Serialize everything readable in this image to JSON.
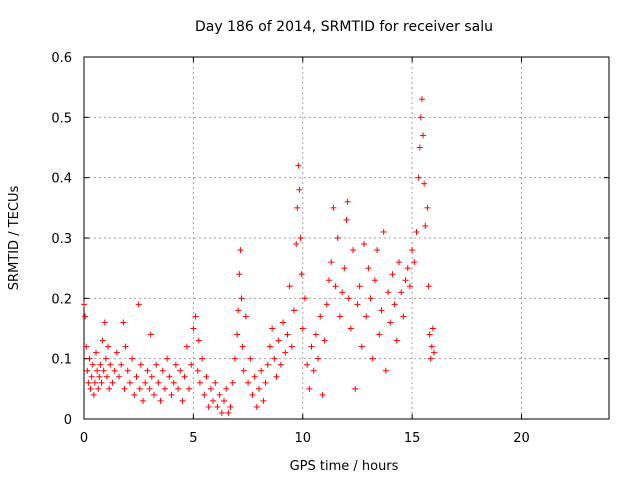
{
  "chart_data": {
    "type": "scatter",
    "title": "Day 186 of 2014, SRMTID for receiver salu",
    "xlabel": "GPS time / hours",
    "ylabel": "SRMTID / TECUs",
    "xlim": [
      0,
      24
    ],
    "ylim": [
      0,
      0.6
    ],
    "xticks": [
      0,
      5,
      10,
      15,
      20
    ],
    "xtick_labels": [
      "0",
      "5",
      "10",
      "15",
      "20"
    ],
    "yticks": [
      0,
      0.1,
      0.2,
      0.3,
      0.4,
      0.5,
      0.6
    ],
    "ytick_labels": [
      "0",
      "0.1",
      "0.2",
      "0.3",
      "0.4",
      "0.5",
      "0.6"
    ],
    "grid": true,
    "marker": "+",
    "marker_color": "#ff0000",
    "series": [
      {
        "name": "SRMTID",
        "points": [
          [
            0.0,
            0.19
          ],
          [
            0.05,
            0.17
          ],
          [
            0.1,
            0.12
          ],
          [
            0.15,
            0.08
          ],
          [
            0.2,
            0.06
          ],
          [
            0.25,
            0.1
          ],
          [
            0.3,
            0.05
          ],
          [
            0.35,
            0.07
          ],
          [
            0.4,
            0.09
          ],
          [
            0.45,
            0.04
          ],
          [
            0.5,
            0.06
          ],
          [
            0.55,
            0.11
          ],
          [
            0.6,
            0.08
          ],
          [
            0.65,
            0.05
          ],
          [
            0.7,
            0.07
          ],
          [
            0.75,
            0.09
          ],
          [
            0.8,
            0.06
          ],
          [
            0.85,
            0.13
          ],
          [
            0.9,
            0.08
          ],
          [
            0.95,
            0.16
          ],
          [
            1.0,
            0.1
          ],
          [
            1.05,
            0.07
          ],
          [
            1.1,
            0.12
          ],
          [
            1.15,
            0.05
          ],
          [
            1.2,
            0.09
          ],
          [
            1.3,
            0.06
          ],
          [
            1.4,
            0.08
          ],
          [
            1.5,
            0.11
          ],
          [
            1.6,
            0.07
          ],
          [
            1.7,
            0.09
          ],
          [
            1.8,
            0.16
          ],
          [
            1.85,
            0.05
          ],
          [
            1.9,
            0.12
          ],
          [
            2.0,
            0.08
          ],
          [
            2.1,
            0.06
          ],
          [
            2.2,
            0.1
          ],
          [
            2.3,
            0.04
          ],
          [
            2.4,
            0.07
          ],
          [
            2.5,
            0.19
          ],
          [
            2.55,
            0.05
          ],
          [
            2.6,
            0.09
          ],
          [
            2.7,
            0.03
          ],
          [
            2.8,
            0.06
          ],
          [
            2.9,
            0.08
          ],
          [
            3.0,
            0.05
          ],
          [
            3.05,
            0.14
          ],
          [
            3.1,
            0.07
          ],
          [
            3.2,
            0.04
          ],
          [
            3.3,
            0.09
          ],
          [
            3.4,
            0.06
          ],
          [
            3.5,
            0.03
          ],
          [
            3.6,
            0.08
          ],
          [
            3.7,
            0.05
          ],
          [
            3.8,
            0.1
          ],
          [
            3.9,
            0.07
          ],
          [
            4.0,
            0.04
          ],
          [
            4.1,
            0.06
          ],
          [
            4.2,
            0.09
          ],
          [
            4.3,
            0.05
          ],
          [
            4.4,
            0.08
          ],
          [
            4.5,
            0.03
          ],
          [
            4.6,
            0.07
          ],
          [
            4.7,
            0.12
          ],
          [
            4.8,
            0.05
          ],
          [
            4.9,
            0.09
          ],
          [
            5.0,
            0.15
          ],
          [
            5.1,
            0.17
          ],
          [
            5.2,
            0.08
          ],
          [
            5.25,
            0.13
          ],
          [
            5.3,
            0.06
          ],
          [
            5.4,
            0.1
          ],
          [
            5.5,
            0.04
          ],
          [
            5.6,
            0.07
          ],
          [
            5.7,
            0.02
          ],
          [
            5.8,
            0.05
          ],
          [
            5.9,
            0.03
          ],
          [
            6.0,
            0.06
          ],
          [
            6.1,
            0.02
          ],
          [
            6.2,
            0.04
          ],
          [
            6.3,
            0.01
          ],
          [
            6.4,
            0.03
          ],
          [
            6.5,
            0.05
          ],
          [
            6.6,
            0.01
          ],
          [
            6.7,
            0.02
          ],
          [
            6.8,
            0.06
          ],
          [
            6.9,
            0.1
          ],
          [
            7.0,
            0.14
          ],
          [
            7.05,
            0.18
          ],
          [
            7.1,
            0.24
          ],
          [
            7.15,
            0.28
          ],
          [
            7.2,
            0.2
          ],
          [
            7.25,
            0.12
          ],
          [
            7.3,
            0.08
          ],
          [
            7.4,
            0.17
          ],
          [
            7.5,
            0.06
          ],
          [
            7.6,
            0.1
          ],
          [
            7.7,
            0.04
          ],
          [
            7.8,
            0.07
          ],
          [
            7.9,
            0.02
          ],
          [
            8.0,
            0.05
          ],
          [
            8.1,
            0.08
          ],
          [
            8.2,
            0.03
          ],
          [
            8.3,
            0.06
          ],
          [
            8.4,
            0.09
          ],
          [
            8.5,
            0.12
          ],
          [
            8.6,
            0.15
          ],
          [
            8.7,
            0.1
          ],
          [
            8.8,
            0.07
          ],
          [
            8.9,
            0.13
          ],
          [
            9.0,
            0.09
          ],
          [
            9.1,
            0.16
          ],
          [
            9.2,
            0.11
          ],
          [
            9.3,
            0.14
          ],
          [
            9.4,
            0.22
          ],
          [
            9.5,
            0.12
          ],
          [
            9.6,
            0.18
          ],
          [
            9.7,
            0.29
          ],
          [
            9.75,
            0.35
          ],
          [
            9.8,
            0.42
          ],
          [
            9.85,
            0.38
          ],
          [
            9.9,
            0.3
          ],
          [
            9.95,
            0.24
          ],
          [
            10.0,
            0.15
          ],
          [
            10.1,
            0.2
          ],
          [
            10.2,
            0.09
          ],
          [
            10.3,
            0.05
          ],
          [
            10.4,
            0.12
          ],
          [
            10.5,
            0.08
          ],
          [
            10.6,
            0.14
          ],
          [
            10.7,
            0.1
          ],
          [
            10.8,
            0.17
          ],
          [
            10.9,
            0.04
          ],
          [
            11.0,
            0.13
          ],
          [
            11.1,
            0.19
          ],
          [
            11.2,
            0.23
          ],
          [
            11.3,
            0.26
          ],
          [
            11.4,
            0.35
          ],
          [
            11.5,
            0.22
          ],
          [
            11.6,
            0.3
          ],
          [
            11.7,
            0.17
          ],
          [
            11.8,
            0.21
          ],
          [
            11.9,
            0.25
          ],
          [
            12.0,
            0.33
          ],
          [
            12.05,
            0.36
          ],
          [
            12.1,
            0.2
          ],
          [
            12.2,
            0.15
          ],
          [
            12.3,
            0.28
          ],
          [
            12.4,
            0.05
          ],
          [
            12.5,
            0.19
          ],
          [
            12.6,
            0.22
          ],
          [
            12.7,
            0.12
          ],
          [
            12.8,
            0.29
          ],
          [
            12.9,
            0.17
          ],
          [
            13.0,
            0.25
          ],
          [
            13.1,
            0.2
          ],
          [
            13.2,
            0.1
          ],
          [
            13.3,
            0.23
          ],
          [
            13.4,
            0.28
          ],
          [
            13.5,
            0.14
          ],
          [
            13.6,
            0.18
          ],
          [
            13.7,
            0.31
          ],
          [
            13.8,
            0.08
          ],
          [
            13.9,
            0.21
          ],
          [
            14.0,
            0.16
          ],
          [
            14.1,
            0.24
          ],
          [
            14.2,
            0.19
          ],
          [
            14.3,
            0.13
          ],
          [
            14.4,
            0.26
          ],
          [
            14.5,
            0.21
          ],
          [
            14.6,
            0.17
          ],
          [
            14.7,
            0.23
          ],
          [
            14.8,
            0.25
          ],
          [
            14.9,
            0.22
          ],
          [
            15.0,
            0.28
          ],
          [
            15.1,
            0.26
          ],
          [
            15.2,
            0.31
          ],
          [
            15.3,
            0.4
          ],
          [
            15.35,
            0.45
          ],
          [
            15.4,
            0.5
          ],
          [
            15.45,
            0.53
          ],
          [
            15.5,
            0.47
          ],
          [
            15.55,
            0.39
          ],
          [
            15.6,
            0.32
          ],
          [
            15.7,
            0.35
          ],
          [
            15.75,
            0.22
          ],
          [
            15.8,
            0.14
          ],
          [
            15.85,
            0.1
          ],
          [
            15.9,
            0.12
          ],
          [
            15.95,
            0.15
          ],
          [
            16.0,
            0.11
          ]
        ]
      }
    ]
  }
}
